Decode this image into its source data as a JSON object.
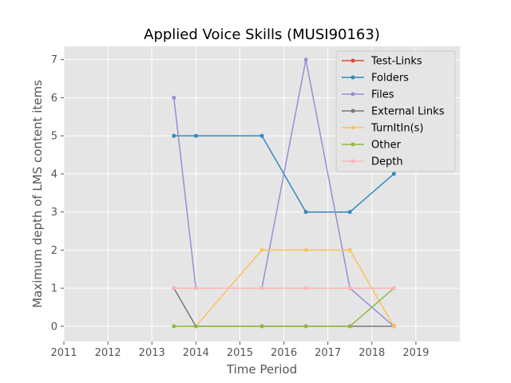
{
  "chart_data": {
    "type": "line",
    "title": "Applied Voice Skills (MUSI90163)",
    "xlabel": "Time Period",
    "ylabel": "Maximum depth of LMS content items",
    "xlim": [
      2011,
      2020
    ],
    "ylim": [
      -0.4,
      7.35
    ],
    "xticks": [
      2011,
      2012,
      2013,
      2014,
      2015,
      2016,
      2017,
      2018,
      2019
    ],
    "yticks": [
      0,
      1,
      2,
      3,
      4,
      5,
      6,
      7
    ],
    "grid": true,
    "legend_position": "top-right",
    "series": [
      {
        "name": "Test-Links",
        "color": "#e24a33",
        "points": []
      },
      {
        "name": "Folders",
        "color": "#348abd",
        "points": [
          [
            2013.5,
            5
          ],
          [
            2014,
            5
          ],
          [
            2015.5,
            5
          ],
          [
            2016.5,
            3
          ],
          [
            2017.5,
            3
          ],
          [
            2018.5,
            4
          ]
        ]
      },
      {
        "name": "Files",
        "color": "#988ed5",
        "points": [
          [
            2013.5,
            6
          ],
          [
            2014,
            1
          ],
          [
            2015.5,
            1
          ],
          [
            2016.5,
            7
          ],
          [
            2017.5,
            1
          ],
          [
            2018.5,
            0
          ]
        ]
      },
      {
        "name": "External Links",
        "color": "#777777",
        "points": [
          [
            2013.5,
            1
          ],
          [
            2014,
            0
          ],
          [
            2015.5,
            0
          ],
          [
            2016.5,
            0
          ],
          [
            2017.5,
            0
          ],
          [
            2018.5,
            0
          ]
        ]
      },
      {
        "name": "TurnItIn(s)",
        "color": "#fbc15e",
        "points": [
          [
            2014,
            0
          ],
          [
            2015.5,
            2
          ],
          [
            2016.5,
            2
          ],
          [
            2017.5,
            2
          ],
          [
            2018.5,
            0
          ]
        ]
      },
      {
        "name": "Other",
        "color": "#8eba42",
        "points": [
          [
            2013.5,
            0
          ],
          [
            2014,
            0
          ],
          [
            2015.5,
            0
          ],
          [
            2016.5,
            0
          ],
          [
            2017.5,
            0
          ],
          [
            2018.5,
            1
          ]
        ]
      },
      {
        "name": "Depth",
        "color": "#ffb5b8",
        "points": [
          [
            2013.5,
            1
          ],
          [
            2014,
            1
          ],
          [
            2015.5,
            1
          ],
          [
            2016.5,
            1
          ],
          [
            2017.5,
            1
          ],
          [
            2018.5,
            1
          ]
        ]
      }
    ]
  }
}
